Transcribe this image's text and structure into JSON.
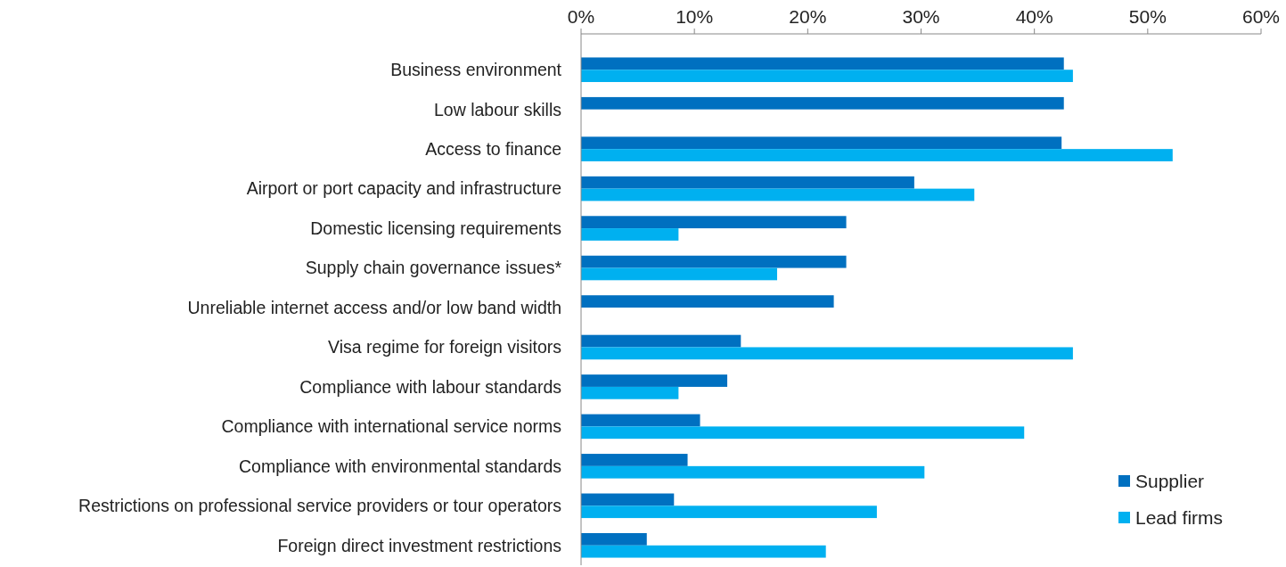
{
  "chart_data": {
    "type": "bar",
    "orientation": "horizontal",
    "categories": [
      "Business environment",
      "Low labour skills",
      "Access to finance",
      "Airport or port capacity and infrastructure",
      "Domestic licensing requirements",
      "Supply chain governance issues*",
      "Unreliable internet access and/or low band width",
      "Visa regime for foreign visitors",
      "Compliance with labour standards",
      "Compliance with international service norms",
      "Compliance with environmental standards",
      "Restrictions on professional service providers or tour operators",
      "Foreign direct investment restrictions"
    ],
    "series": [
      {
        "name": "Supplier",
        "color": "#0070c0",
        "values": [
          42.6,
          42.6,
          42.4,
          29.4,
          23.4,
          23.4,
          22.3,
          14.1,
          12.9,
          10.5,
          9.4,
          8.2,
          5.8
        ]
      },
      {
        "name": "Lead firms",
        "color": "#00b0f0",
        "values": [
          43.4,
          0,
          52.2,
          34.7,
          8.6,
          17.3,
          0,
          43.4,
          8.6,
          39.1,
          30.3,
          26.1,
          21.6
        ]
      }
    ],
    "xlim": [
      0,
      60
    ],
    "xticks": [
      {
        "value": 0,
        "label": "0%"
      },
      {
        "value": 10,
        "label": "10%"
      },
      {
        "value": 20,
        "label": "20%"
      },
      {
        "value": 30,
        "label": "30%"
      },
      {
        "value": 40,
        "label": "40%"
      },
      {
        "value": 50,
        "label": "50%"
      },
      {
        "value": 60,
        "label": "60%"
      }
    ],
    "grid": false,
    "legend": "bottom right"
  }
}
